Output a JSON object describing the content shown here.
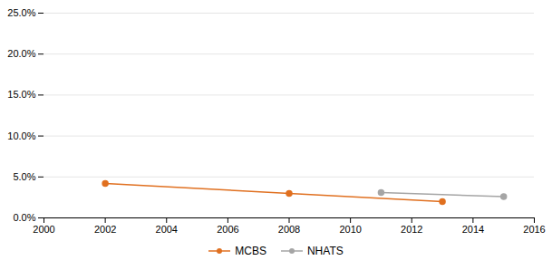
{
  "chart_data": {
    "type": "line",
    "marker": "circle",
    "series": [
      {
        "name": "MCBS",
        "color": "#E07020",
        "x": [
          2002,
          2008,
          2013
        ],
        "values": [
          0.042,
          0.03,
          0.02
        ]
      },
      {
        "name": "NHATS",
        "color": "#A5A5A5",
        "x": [
          2011,
          2015
        ],
        "values": [
          0.031,
          0.026
        ]
      }
    ],
    "xlim": [
      2000,
      2016
    ],
    "xticks": [
      2000,
      2002,
      2004,
      2006,
      2008,
      2010,
      2012,
      2014,
      2016
    ],
    "ylim": [
      0.0,
      0.25
    ],
    "yticks": [
      {
        "value": 0.0,
        "label": "0.0%"
      },
      {
        "value": 0.05,
        "label": "5.0%"
      },
      {
        "value": 0.1,
        "label": "10.0%"
      },
      {
        "value": 0.15,
        "label": "15.0%"
      },
      {
        "value": 0.2,
        "label": "20.0%"
      },
      {
        "value": 0.25,
        "label": "25.0%"
      }
    ],
    "grid": true,
    "legend": "bottom"
  }
}
